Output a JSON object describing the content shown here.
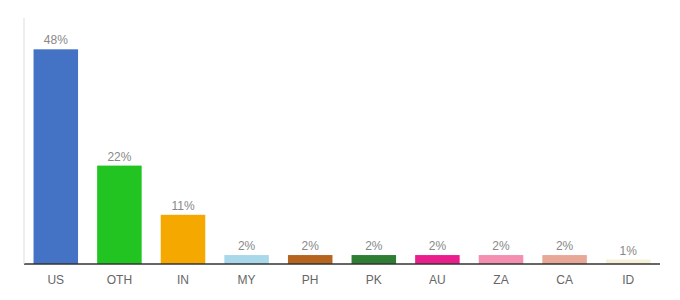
{
  "chart_data": {
    "type": "bar",
    "categories": [
      "US",
      "OTH",
      "IN",
      "MY",
      "PH",
      "PK",
      "AU",
      "ZA",
      "CA",
      "ID"
    ],
    "values": [
      48,
      22,
      11,
      2,
      2,
      2,
      2,
      2,
      2,
      1
    ],
    "value_labels": [
      "48%",
      "22%",
      "11%",
      "2%",
      "2%",
      "2%",
      "2%",
      "2%",
      "2%",
      "1%"
    ],
    "colors": [
      "#4472c4",
      "#22c422",
      "#f5a800",
      "#a8d8ea",
      "#b5651d",
      "#2e7d32",
      "#e91e8c",
      "#f48fb1",
      "#e8a898",
      "#f5f0d8"
    ],
    "ylim": [
      0,
      55
    ],
    "data_labels": true,
    "tick_labels": "x"
  }
}
